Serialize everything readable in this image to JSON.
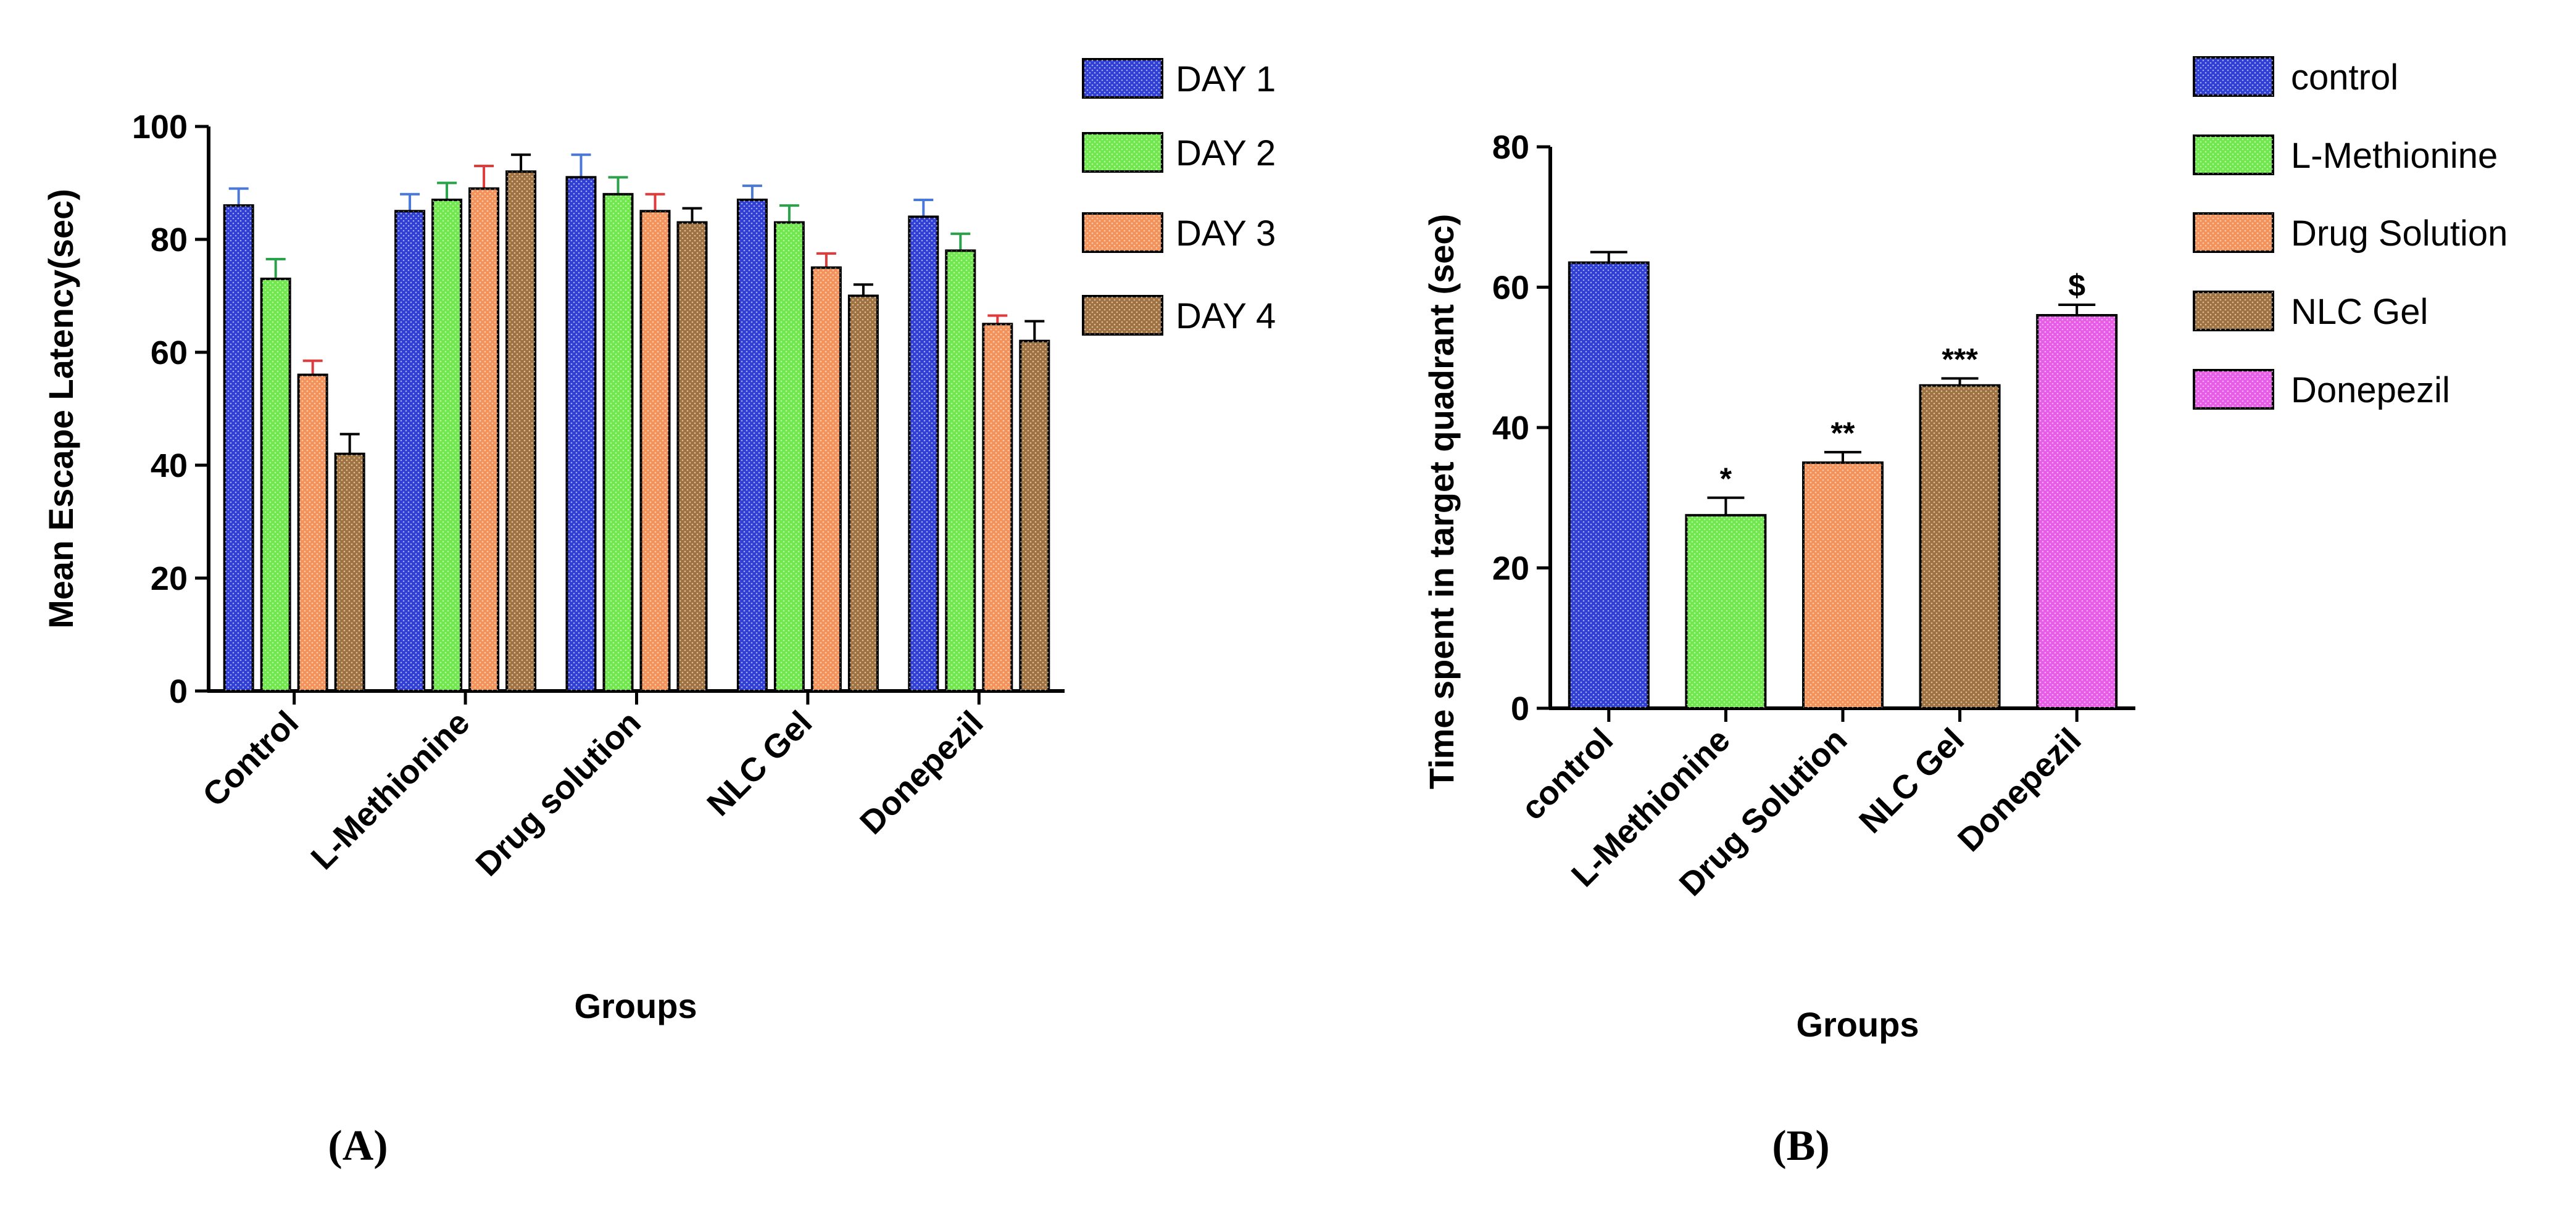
{
  "chart_data": [
    {
      "id": "A",
      "type": "bar",
      "panel_label": "(A)",
      "xlabel": "Groups",
      "ylabel": "Mean Escape Latency(sec)",
      "ylim": [
        0,
        100
      ],
      "yticks": [
        0,
        20,
        40,
        60,
        80,
        100
      ],
      "categories": [
        "Control",
        "L-Methionine",
        "Drug solution",
        "NLC Gel",
        "Donepezil"
      ],
      "series": [
        {
          "name": "DAY 1",
          "color": "#2f3fd6",
          "error_color": "#4a78d8",
          "values": [
            86,
            85,
            91,
            87,
            84
          ],
          "errors": [
            3,
            3,
            4,
            2.5,
            3
          ]
        },
        {
          "name": "DAY 2",
          "color": "#6ee84a",
          "error_color": "#2aa24a",
          "values": [
            73,
            87,
            88,
            83,
            78
          ],
          "errors": [
            3.5,
            3,
            3,
            3,
            3
          ]
        },
        {
          "name": "DAY 3",
          "color": "#f5925a",
          "error_color": "#e03a3a",
          "values": [
            56,
            89,
            85,
            75,
            65
          ],
          "errors": [
            2.5,
            4,
            3,
            2.5,
            1.5
          ]
        },
        {
          "name": "DAY 4",
          "color": "#a0723f",
          "error_color": "#000000",
          "values": [
            42,
            92,
            83,
            70,
            62
          ],
          "errors": [
            3.5,
            3,
            2.5,
            2,
            3.5
          ]
        }
      ]
    },
    {
      "id": "B",
      "type": "bar",
      "panel_label": "(B)",
      "xlabel": "Groups",
      "ylabel": "Time spent in target quadrant (sec)",
      "ylim": [
        0,
        80
      ],
      "yticks": [
        0,
        20,
        40,
        60,
        80
      ],
      "categories": [
        "control",
        "L-Methionine",
        "Drug Solution",
        "NLC Gel",
        "Donepezil"
      ],
      "values": [
        63.5,
        27.5,
        35,
        46,
        56
      ],
      "errors": [
        1.5,
        2.5,
        1.5,
        1,
        1.5
      ],
      "colors": [
        "#2f3fd6",
        "#6ee84a",
        "#f5925a",
        "#a0723f",
        "#e85ae8"
      ],
      "annotations": [
        "",
        "*",
        "**",
        "***",
        "$"
      ],
      "legend": [
        "control",
        "L-Methionine",
        "Drug Solution",
        "NLC Gel",
        "Donepezil"
      ]
    }
  ]
}
